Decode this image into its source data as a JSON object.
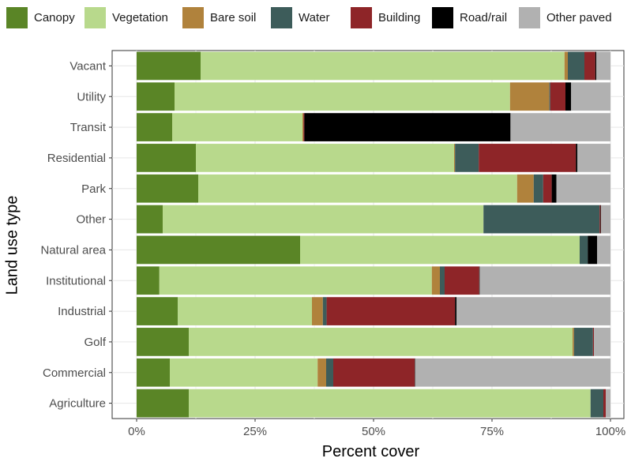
{
  "chart_data": {
    "type": "bar",
    "orientation": "horizontal",
    "stacked": true,
    "xlabel": "Percent cover",
    "ylabel": "Land use type",
    "xlim": [
      0,
      100
    ],
    "x_ticks": [
      "0%",
      "25%",
      "50%",
      "75%",
      "100%"
    ],
    "grid": true,
    "legend_position": "top",
    "categories": [
      "Vacant",
      "Utility",
      "Transit",
      "Residential",
      "Park",
      "Other",
      "Natural area",
      "Institutional",
      "Industrial",
      "Golf",
      "Commercial",
      "Agriculture"
    ],
    "series": [
      {
        "name": "Canopy",
        "color": "#5a8526",
        "values": [
          13.5,
          8.0,
          7.5,
          12.5,
          13.0,
          5.5,
          34.5,
          4.8,
          8.7,
          11.0,
          7.0,
          11.0
        ]
      },
      {
        "name": "Vegetation",
        "color": "#b8d98c",
        "values": [
          76.8,
          70.8,
          27.5,
          54.5,
          67.3,
          67.7,
          59.0,
          57.5,
          28.3,
          81.0,
          31.2,
          84.8
        ]
      },
      {
        "name": "Bare soil",
        "color": "#b0823c",
        "values": [
          0.7,
          8.3,
          0.2,
          0.2,
          3.5,
          0.0,
          0.0,
          1.7,
          2.3,
          0.3,
          1.8,
          0.0
        ]
      },
      {
        "name": "Water",
        "color": "#3d5c5a",
        "values": [
          3.5,
          0.2,
          0.0,
          5.0,
          2.0,
          24.5,
          1.7,
          1.0,
          0.8,
          4.0,
          1.5,
          2.7
        ]
      },
      {
        "name": "Building",
        "color": "#8e2528",
        "values": [
          2.3,
          3.2,
          0.2,
          20.5,
          1.8,
          0.2,
          0.0,
          7.3,
          27.1,
          0.2,
          17.2,
          0.5
        ]
      },
      {
        "name": "Road/rail",
        "color": "#000000",
        "values": [
          0.2,
          1.2,
          43.5,
          0.3,
          1.0,
          0.1,
          2.0,
          0.1,
          0.3,
          0.0,
          0.1,
          0.0
        ]
      },
      {
        "name": "Other paved",
        "color": "#b1b1b1",
        "values": [
          3.0,
          8.3,
          21.1,
          7.0,
          11.4,
          2.0,
          2.8,
          27.6,
          32.5,
          3.5,
          41.2,
          1.0
        ]
      }
    ]
  }
}
